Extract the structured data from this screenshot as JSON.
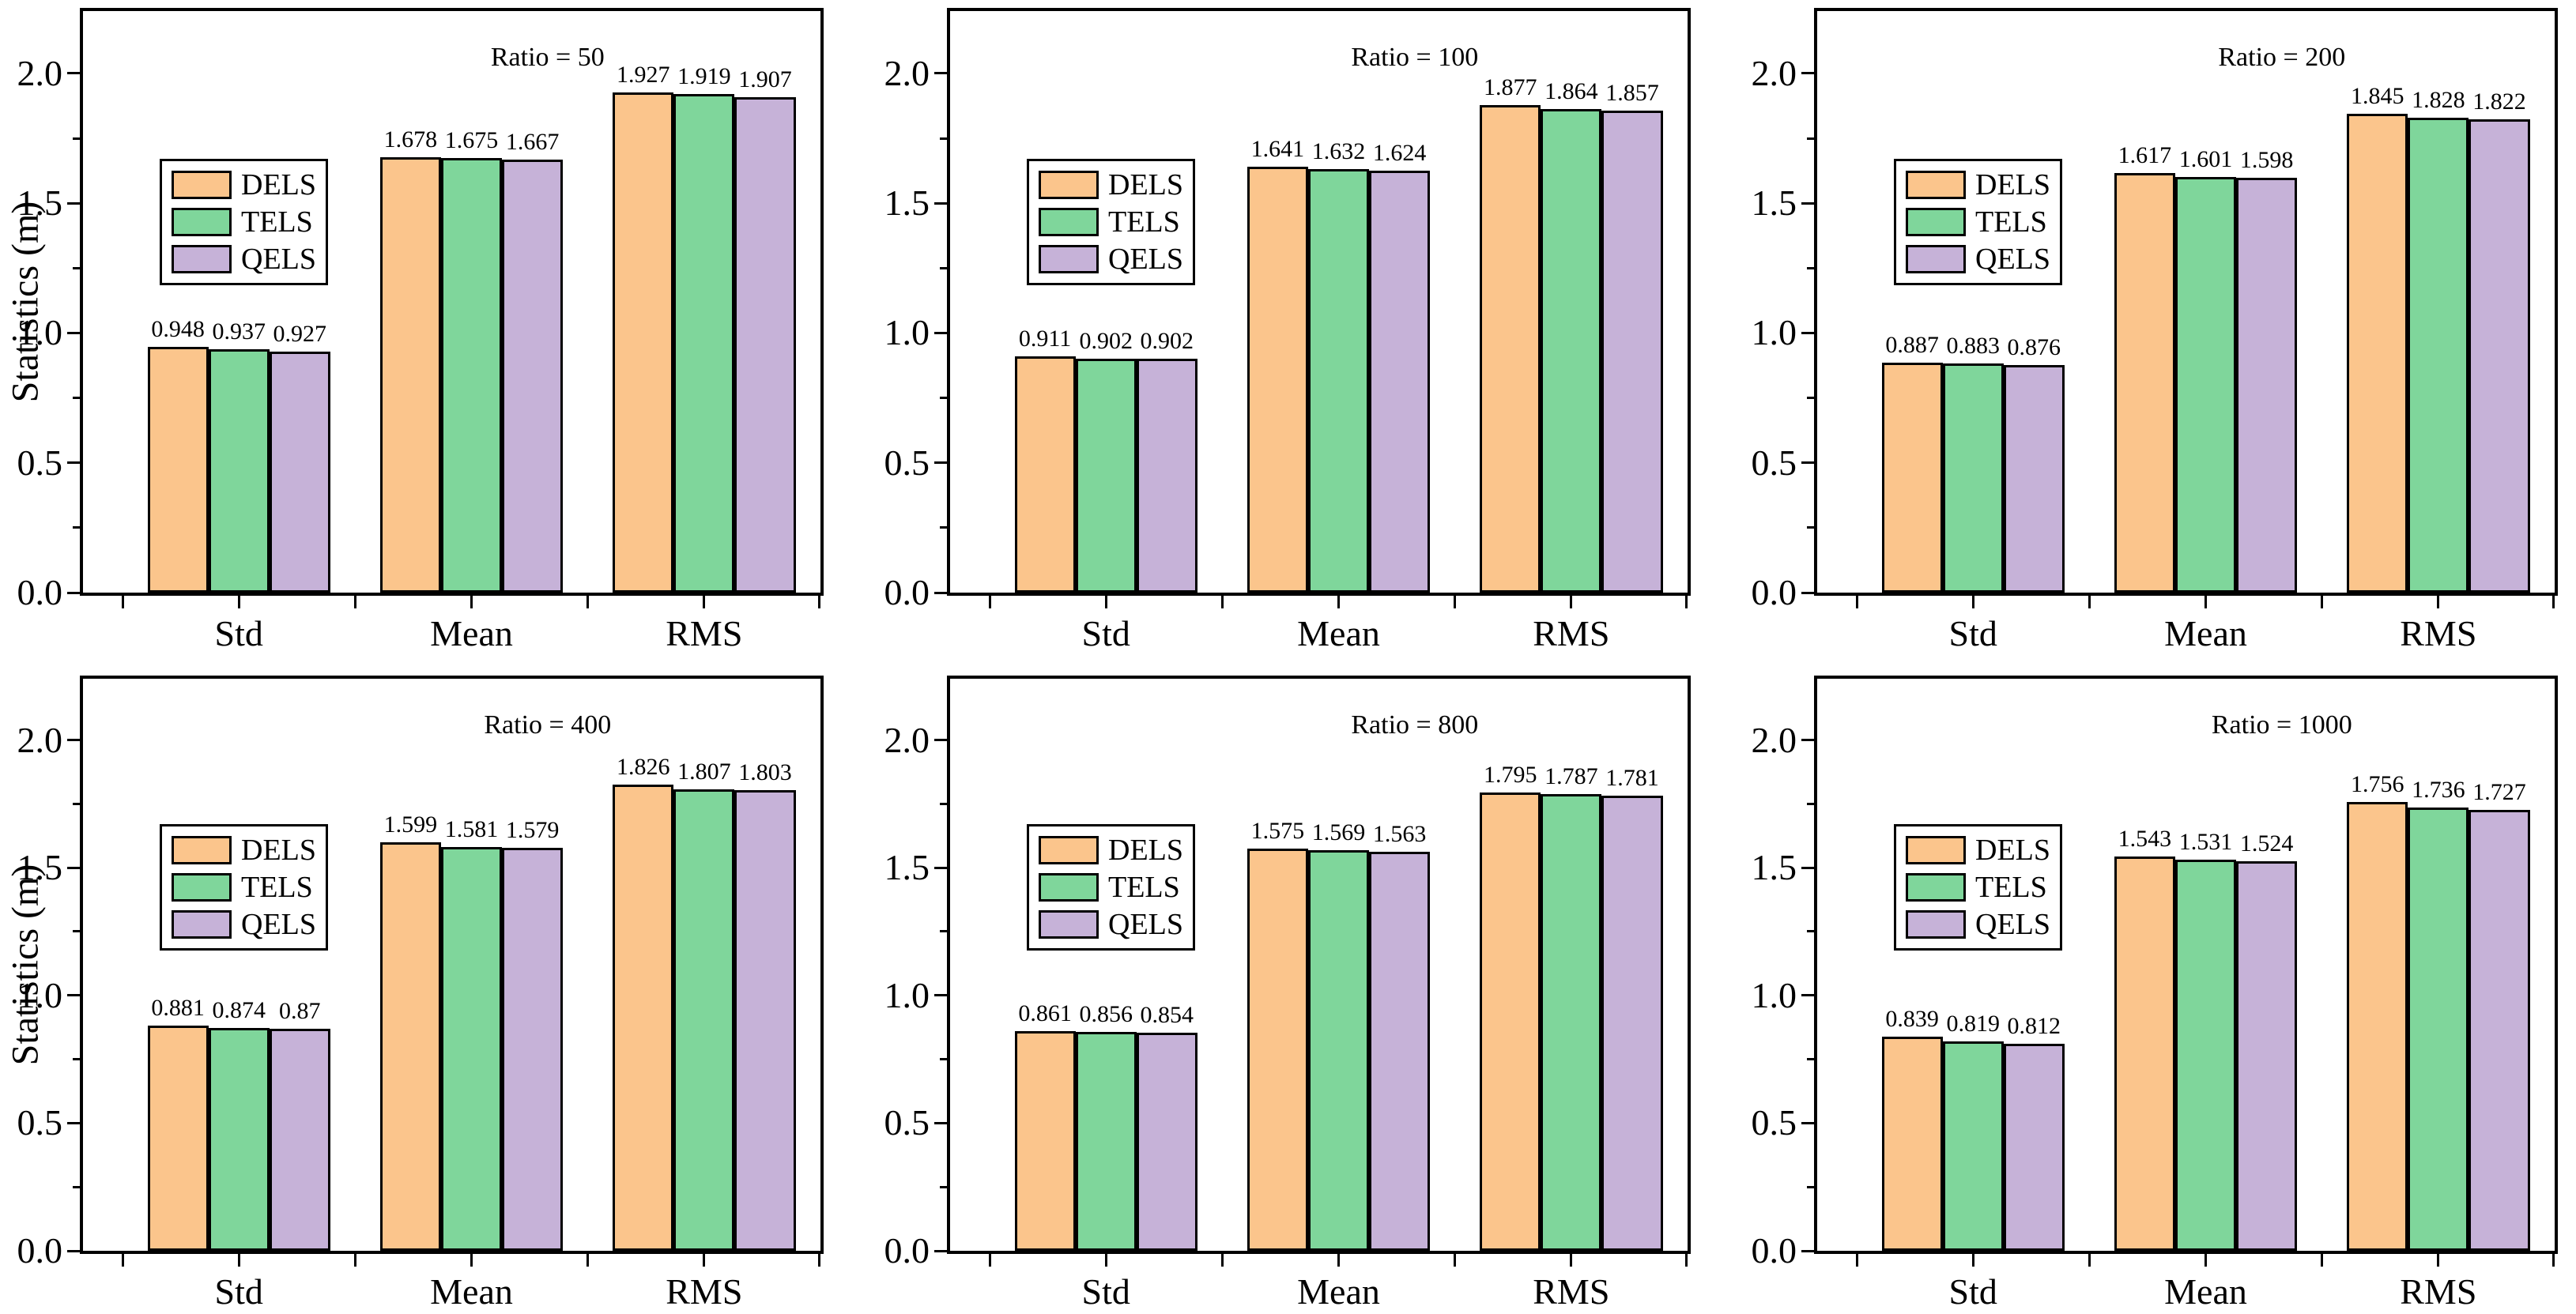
{
  "figure": {
    "ylabel": "Statistics (m)",
    "categories": [
      "Std",
      "Mean",
      "RMS"
    ],
    "y_tick_labels": [
      "0.0",
      "0.5",
      "1.0",
      "1.5",
      "2.0"
    ],
    "legend_entries": [
      "DELS",
      "TELS",
      "QELS"
    ],
    "colors": {
      "dels_fill": "#FBC58C",
      "tels_fill": "#7FD69B",
      "qels_fill": "#C6B2D8",
      "axis": "#000000",
      "background": "#FFFFFF"
    }
  },
  "chart_data": [
    {
      "type": "bar",
      "title": "Ratio = 50",
      "categories": [
        "Std",
        "Mean",
        "RMS"
      ],
      "xlabel": "",
      "ylabel": "Statistics (m)",
      "ylim": [
        0,
        2.24
      ],
      "legend_position": "upper-left-inside",
      "grid": false,
      "series": [
        {
          "name": "DELS",
          "values": [
            0.948,
            1.678,
            1.927
          ]
        },
        {
          "name": "TELS",
          "values": [
            0.937,
            1.675,
            1.919
          ]
        },
        {
          "name": "QELS",
          "values": [
            0.927,
            1.667,
            1.907
          ]
        }
      ]
    },
    {
      "type": "bar",
      "title": "Ratio = 100",
      "categories": [
        "Std",
        "Mean",
        "RMS"
      ],
      "xlabel": "",
      "ylabel": "Statistics (m)",
      "ylim": [
        0,
        2.24
      ],
      "legend_position": "upper-left-inside",
      "grid": false,
      "series": [
        {
          "name": "DELS",
          "values": [
            0.911,
            1.641,
            1.877
          ]
        },
        {
          "name": "TELS",
          "values": [
            0.902,
            1.632,
            1.864
          ]
        },
        {
          "name": "QELS",
          "values": [
            0.902,
            1.624,
            1.857
          ]
        }
      ]
    },
    {
      "type": "bar",
      "title": "Ratio = 200",
      "categories": [
        "Std",
        "Mean",
        "RMS"
      ],
      "xlabel": "",
      "ylabel": "Statistics (m)",
      "ylim": [
        0,
        2.24
      ],
      "legend_position": "upper-left-inside",
      "grid": false,
      "series": [
        {
          "name": "DELS",
          "values": [
            0.887,
            1.617,
            1.845
          ]
        },
        {
          "name": "TELS",
          "values": [
            0.883,
            1.601,
            1.828
          ]
        },
        {
          "name": "QELS",
          "values": [
            0.876,
            1.598,
            1.822
          ]
        }
      ]
    },
    {
      "type": "bar",
      "title": "Ratio = 400",
      "categories": [
        "Std",
        "Mean",
        "RMS"
      ],
      "xlabel": "",
      "ylabel": "Statistics (m)",
      "ylim": [
        0,
        2.24
      ],
      "legend_position": "upper-left-inside",
      "grid": false,
      "series": [
        {
          "name": "DELS",
          "values": [
            0.881,
            1.599,
            1.826
          ]
        },
        {
          "name": "TELS",
          "values": [
            0.874,
            1.581,
            1.807
          ]
        },
        {
          "name": "QELS",
          "values": [
            0.87,
            1.579,
            1.803
          ]
        }
      ]
    },
    {
      "type": "bar",
      "title": "Ratio = 800",
      "categories": [
        "Std",
        "Mean",
        "RMS"
      ],
      "xlabel": "",
      "ylabel": "Statistics (m)",
      "ylim": [
        0,
        2.24
      ],
      "legend_position": "upper-left-inside",
      "grid": false,
      "series": [
        {
          "name": "DELS",
          "values": [
            0.861,
            1.575,
            1.795
          ]
        },
        {
          "name": "TELS",
          "values": [
            0.856,
            1.569,
            1.787
          ]
        },
        {
          "name": "QELS",
          "values": [
            0.854,
            1.563,
            1.781
          ]
        }
      ]
    },
    {
      "type": "bar",
      "title": "Ratio = 1000",
      "categories": [
        "Std",
        "Mean",
        "RMS"
      ],
      "xlabel": "",
      "ylabel": "Statistics (m)",
      "ylim": [
        0,
        2.24
      ],
      "legend_position": "upper-left-inside",
      "grid": false,
      "series": [
        {
          "name": "DELS",
          "values": [
            0.839,
            1.543,
            1.756
          ]
        },
        {
          "name": "TELS",
          "values": [
            0.819,
            1.531,
            1.736
          ]
        },
        {
          "name": "QELS",
          "values": [
            0.812,
            1.524,
            1.727
          ]
        }
      ]
    }
  ]
}
